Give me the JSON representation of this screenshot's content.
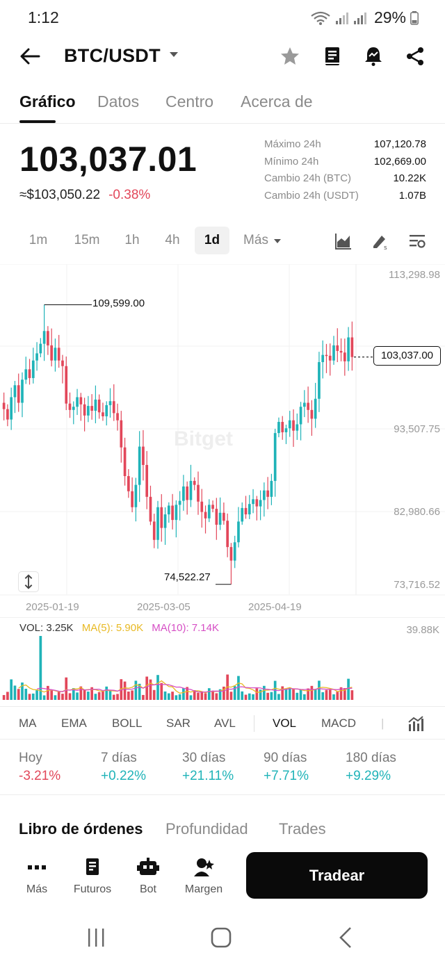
{
  "status_bar": {
    "time": "1:12",
    "battery": "29%"
  },
  "header": {
    "pair": "BTC/USDT"
  },
  "tabs": [
    {
      "label": "Gráfico",
      "active": true
    },
    {
      "label": "Datos",
      "active": false
    },
    {
      "label": "Centro",
      "active": false
    },
    {
      "label": "Acerca de",
      "active": false
    }
  ],
  "ticker": {
    "last_price": "103,037.01",
    "fiat_price": "≈$103,050.22",
    "change_pct": "-0.38%",
    "stats": [
      {
        "label": "Máximo 24h",
        "value": "107,120.78"
      },
      {
        "label": "Mínimo 24h",
        "value": "102,669.00"
      },
      {
        "label": "Cambio 24h (BTC)",
        "value": "10.22K"
      },
      {
        "label": "Cambio 24h (USDT)",
        "value": "1.07B"
      }
    ]
  },
  "timeframes": [
    {
      "label": "1m",
      "active": false
    },
    {
      "label": "15m",
      "active": false
    },
    {
      "label": "1h",
      "active": false
    },
    {
      "label": "4h",
      "active": false
    },
    {
      "label": "1d",
      "active": true
    },
    {
      "label": "Más",
      "active": false
    }
  ],
  "chart": {
    "y_axis_labels": [
      "113,298.98",
      "93,507.75",
      "82,980.66",
      "73,716.52"
    ],
    "x_axis_labels": [
      "2025-01-19",
      "2025-03-05",
      "2025-04-19"
    ],
    "current_price_tag": "103,037.00",
    "high_label": "109,599.00",
    "low_label": "74,522.27",
    "watermark": "Bitget",
    "up_color": "#1fb3b8",
    "down_color": "#e2475a"
  },
  "chart_data": {
    "type": "candlestick",
    "interval": "1d",
    "ylim": [
      73716.52,
      113298.98
    ],
    "y_ticks": [
      113298.98,
      93507.75,
      82980.66,
      73716.52
    ],
    "x_ticks": [
      "2025-01-19",
      "2025-03-05",
      "2025-04-19"
    ],
    "current_price": 103037.0,
    "highest_high": 109599.0,
    "lowest_low": 74522.27,
    "close_series": [
      96500,
      95200,
      98000,
      99500,
      97300,
      100200,
      101500,
      100400,
      102600,
      103500,
      104700,
      106300,
      104500,
      102600,
      104200,
      102600,
      101900,
      97200,
      96400,
      96800,
      98000,
      97100,
      95700,
      96900,
      96300,
      97700,
      96100,
      95600,
      97000,
      97500,
      96000,
      95100,
      91700,
      88100,
      86200,
      84200,
      87000,
      91800,
      89500,
      85500,
      82400,
      80100,
      84200,
      81600,
      83300,
      84400,
      82600,
      84500,
      85000,
      86800,
      85100,
      87500,
      87000,
      84900,
      83600,
      82800,
      84500,
      84000,
      82000,
      83500,
      82500,
      79200,
      77500,
      79800,
      82400,
      84100,
      83300,
      84600,
      85200,
      84300,
      85100,
      86300,
      85500,
      87500,
      93500,
      94900,
      93600,
      94100,
      95100,
      93800,
      94600,
      96800,
      97300,
      96400,
      95300,
      97800,
      102400,
      103300,
      103200,
      102600,
      104500,
      103800,
      103600,
      102500,
      105500,
      103037
    ]
  },
  "volume": {
    "vol_label": "VOL: 3.25K",
    "ma5_label": "MA(5): 5.90K",
    "ma10_label": "MA(10): 7.14K",
    "max_label": "39.88K",
    "ma5_color": "#e8b923",
    "ma10_color": "#d64fc5"
  },
  "indicators": [
    {
      "label": "MA",
      "active": false
    },
    {
      "label": "EMA",
      "active": false
    },
    {
      "label": "BOLL",
      "active": false
    },
    {
      "label": "SAR",
      "active": false
    },
    {
      "label": "AVL",
      "active": false
    },
    {
      "label": "VOL",
      "active": true
    },
    {
      "label": "MACD",
      "active": false
    }
  ],
  "performance": [
    {
      "label": "Hoy",
      "value": "-3.21%",
      "dir": "neg"
    },
    {
      "label": "7 días",
      "value": "+0.22%",
      "dir": "pos"
    },
    {
      "label": "30 días",
      "value": "+21.11%",
      "dir": "pos"
    },
    {
      "label": "90 días",
      "value": "+7.71%",
      "dir": "pos"
    },
    {
      "label": "180 días",
      "value": "+9.29%",
      "dir": "pos"
    }
  ],
  "book_tabs": [
    {
      "label": "Libro de órdenes",
      "active": true
    },
    {
      "label": "Profundidad",
      "active": false
    },
    {
      "label": "Trades",
      "active": false
    }
  ],
  "bottom_bar": {
    "items": [
      {
        "label": "Más",
        "icon": "more-dots-icon"
      },
      {
        "label": "Futuros",
        "icon": "futures-icon"
      },
      {
        "label": "Bot",
        "icon": "bot-icon"
      },
      {
        "label": "Margen",
        "icon": "margin-icon"
      }
    ],
    "trade_label": "Tradear"
  }
}
